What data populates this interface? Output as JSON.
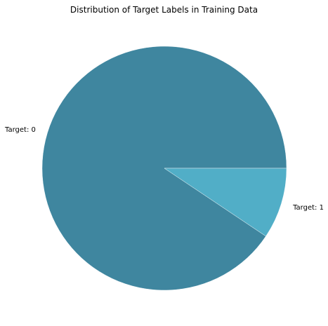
{
  "chart_data": {
    "type": "pie",
    "title": "Distribution of Target Labels in Training Data",
    "labels": [
      "Target: 0",
      "Target: 1"
    ],
    "values": [
      90.6,
      9.4
    ],
    "colors": [
      "#3f869f",
      "#51aec7"
    ],
    "start_angle_deg": 0,
    "direction": "counterclockwise",
    "legend": "none"
  }
}
